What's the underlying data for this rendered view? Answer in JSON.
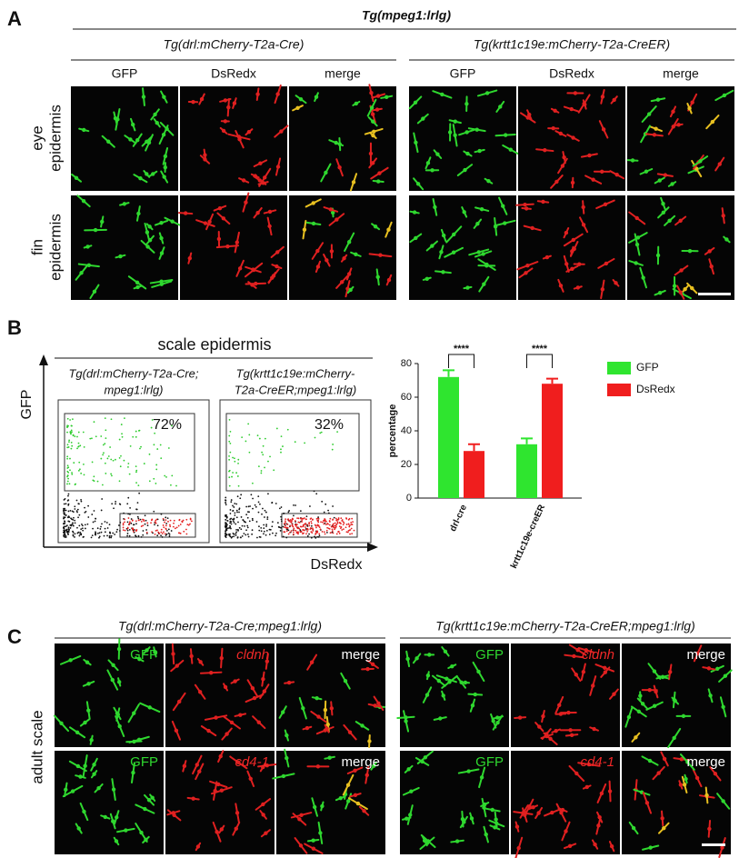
{
  "panel_a": {
    "letter": "A",
    "title": "Tg(mpeg1:lrlg)",
    "groups": [
      {
        "title": "Tg(drl:mCherry-T2a-Cre)",
        "columns": [
          "GFP",
          "DsRedx",
          "merge"
        ]
      },
      {
        "title": "Tg(krtt1c19e:mCherry-T2a-CreER)",
        "columns": [
          "GFP",
          "DsRedx",
          "merge"
        ]
      }
    ],
    "rows": [
      [
        "eye",
        "epidermis"
      ],
      [
        "fin",
        "epidermis"
      ]
    ]
  },
  "panel_b": {
    "letter": "B",
    "title": "scale epidermis",
    "y_label": "GFP",
    "x_label": "DsRedx",
    "plots": [
      {
        "title": [
          "Tg(drl:mCherry-T2a-Cre;",
          "mpeg1:lrlg)"
        ],
        "gate_label": "72%"
      },
      {
        "title": [
          "Tg(krtt1c19e:mCherry-",
          "T2a-CreER;mpeg1:lrlg)"
        ],
        "gate_label": "32%"
      }
    ]
  },
  "chart_data": {
    "type": "bar",
    "y_label": "percentage",
    "categories": [
      "drl-cre",
      "krtt1c19e-creER"
    ],
    "series": [
      {
        "name": "GFP",
        "color": "#2fe52f",
        "values": [
          72,
          32
        ],
        "errors": [
          4,
          3.5
        ]
      },
      {
        "name": "DsRedx",
        "color": "#f01e1e",
        "values": [
          28,
          68
        ],
        "errors": [
          4,
          3
        ]
      }
    ],
    "annotations": [
      "****",
      "****"
    ],
    "ylim": [
      0,
      80
    ],
    "yticks": [
      0,
      20,
      40,
      60,
      80
    ],
    "legend": "right"
  },
  "panel_c": {
    "letter": "C",
    "row_label": "adult scale",
    "groups": [
      {
        "title": "Tg(drl:mCherry-T2a-Cre;mpeg1:lrlg)",
        "rows": [
          [
            "GFP",
            "cldnh",
            "merge"
          ],
          [
            "GFP",
            "cd4-1",
            "merge"
          ]
        ]
      },
      {
        "title": "Tg(krtt1c19e:mCherry-T2a-CreER;mpeg1:lrlg)",
        "rows": [
          [
            "GFP",
            "cldnh",
            "merge"
          ],
          [
            "GFP",
            "cd4-1",
            "merge"
          ]
        ]
      }
    ]
  }
}
